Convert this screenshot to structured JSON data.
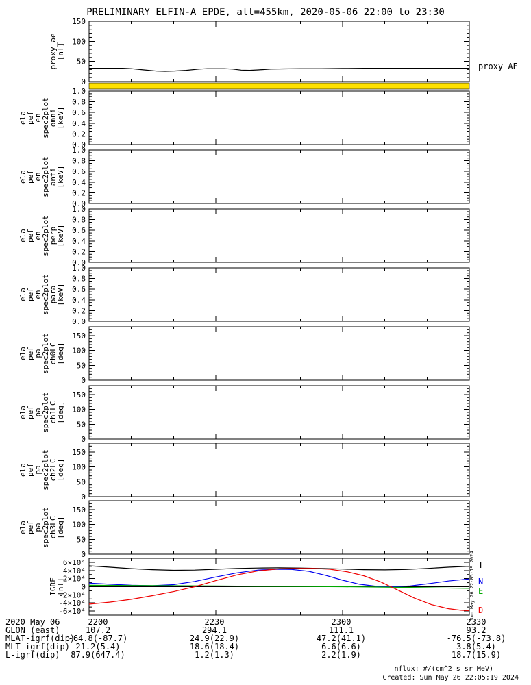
{
  "title": "PRELIMINARY ELFIN-A EPDE, alt=455km, 2020-05-06 22:00 to 23:30",
  "colors": {
    "axis": "#000000",
    "stripe_yellow": "#ffe100",
    "trace_T": "#000000",
    "trace_N": "#0000ee",
    "trace_E": "#00aa00",
    "trace_D": "#ee0000"
  },
  "right_labels": {
    "proxy": "proxy_AE",
    "T": "T",
    "N": "N",
    "E": "E",
    "D": "D"
  },
  "side_note_vertical": "Sun May 26 22:05:19 2024",
  "footer": {
    "date_label": "2020 May 06",
    "tick_labels": [
      "2200",
      "2230",
      "2300",
      "2330"
    ],
    "rows": [
      {
        "label": "GLON (east)",
        "values": [
          "107.2",
          "294.1",
          "111.1",
          "93.2"
        ]
      },
      {
        "label": "MLAT-igrf(dip)",
        "values": [
          "-64.8(-87.7)",
          "24.9(22.9)",
          "47.2(41.1)",
          "-76.5(-73.8)"
        ]
      },
      {
        "label": "MLT-igrf(dip)",
        "values": [
          "21.2(5.4)",
          "18.6(18.4)",
          "6.6(6.6)",
          "3.8(5.4)"
        ]
      },
      {
        "label": "L-igrf(dip)",
        "values": [
          "87.9(647.4)",
          "1.2(1.3)",
          "2.2(1.9)",
          "18.7(15.9)"
        ]
      }
    ]
  },
  "notes": {
    "nflux": "nflux: #/(cm^2 s sr MeV)",
    "created": "Created: Sun May 26 22:05:19 2024"
  },
  "chart_data": {
    "type": "line",
    "subtype": "multi-panel-time-series",
    "title": "PRELIMINARY ELFIN-A EPDE, alt=455km, 2020-05-06 22:00 to 23:30",
    "x_axis": {
      "start": "2020-05-06 22:00",
      "end": "2020-05-06 23:30",
      "major_tick_labels": [
        "2200",
        "2230",
        "2300",
        "2330"
      ]
    },
    "x_range_min": [
      0,
      90
    ],
    "x_major_ticks_min": [
      0,
      30,
      60,
      90
    ],
    "x_minor_step_min": 10,
    "panels": [
      {
        "id": "proxy_ae",
        "ylabel_lines": [
          "proxy_ae",
          "[nT]"
        ],
        "ylim": [
          0,
          150
        ],
        "yticks": [
          0,
          50,
          100,
          150
        ],
        "ytick_labels": [
          "0",
          "50",
          "100",
          "150"
        ],
        "y_minor_step": 10,
        "series": [
          {
            "name": "proxy_AE",
            "color_key": "trace_T",
            "x": [
              0,
              5,
              8,
              10,
              13,
              16,
              18,
              20,
              23,
              26,
              28,
              30,
              32,
              34,
              36,
              38,
              40,
              43,
              46,
              50,
              55,
              60,
              65,
              70,
              75,
              80,
              85,
              90
            ],
            "y": [
              33,
              33,
              33,
              32,
              29,
              26,
              25.5,
              26,
              28,
              31,
              32,
              32,
              32,
              31,
              28.5,
              28,
              29,
              31,
              31.5,
              32,
              32,
              32.5,
              33,
              33,
              33,
              33,
              33,
              33
            ]
          }
        ]
      },
      {
        "id": "spectrogram_stripe",
        "type": "stripe",
        "note": "saturated yellow spectrogram band"
      },
      {
        "id": "ela_pef_en_spec2plot_omni",
        "ylabel_lines": [
          "ela",
          "pef",
          "en",
          "spec2plot",
          "omni",
          "[keV]"
        ],
        "ylim": [
          0,
          1
        ],
        "yticks": [
          0,
          0.2,
          0.4,
          0.6,
          0.8,
          1
        ],
        "ytick_labels": [
          "0.0",
          "0.2",
          "0.4",
          "0.6",
          "0.8",
          "1.0"
        ],
        "y_minor_step": 0.05,
        "series": []
      },
      {
        "id": "ela_pef_en_spec2plot_anti",
        "ylabel_lines": [
          "ela",
          "pef",
          "en",
          "spec2plot",
          "anti",
          "[keV]"
        ],
        "ylim": [
          0,
          1
        ],
        "yticks": [
          0,
          0.2,
          0.4,
          0.6,
          0.8,
          1
        ],
        "ytick_labels": [
          "0.0",
          "0.2",
          "0.4",
          "0.6",
          "0.8",
          "1.0"
        ],
        "y_minor_step": 0.05,
        "series": []
      },
      {
        "id": "ela_pef_en_spec2plot_perp",
        "ylabel_lines": [
          "ela",
          "pef",
          "en",
          "spec2plot",
          "perp",
          "[keV]"
        ],
        "ylim": [
          0,
          1
        ],
        "yticks": [
          0,
          0.2,
          0.4,
          0.6,
          0.8,
          1
        ],
        "ytick_labels": [
          "0.0",
          "0.2",
          "0.4",
          "0.6",
          "0.8",
          "1.0"
        ],
        "y_minor_step": 0.05,
        "series": []
      },
      {
        "id": "ela_pef_en_spec2plot_para",
        "ylabel_lines": [
          "ela",
          "pef",
          "en",
          "spec2plot",
          "para",
          "[keV]"
        ],
        "ylim": [
          0,
          1
        ],
        "yticks": [
          0,
          0.2,
          0.4,
          0.6,
          0.8,
          1
        ],
        "ytick_labels": [
          "0.0",
          "0.2",
          "0.4",
          "0.6",
          "0.8",
          "1.0"
        ],
        "y_minor_step": 0.05,
        "series": []
      },
      {
        "id": "ela_pef_pa_spec2plot_ch0LC",
        "ylabel_lines": [
          "ela",
          "pef",
          "pa",
          "spec2plot",
          "ch0LC",
          "[deg]"
        ],
        "ylim": [
          0,
          180
        ],
        "yticks": [
          0,
          50,
          100,
          150
        ],
        "ytick_labels": [
          "0",
          "50",
          "100",
          "150"
        ],
        "y_minor_step": 10,
        "series": []
      },
      {
        "id": "ela_pef_pa_spec2plot_ch1LC",
        "ylabel_lines": [
          "ela",
          "pef",
          "pa",
          "spec2plot",
          "ch1LC",
          "[deg]"
        ],
        "ylim": [
          0,
          180
        ],
        "yticks": [
          0,
          50,
          100,
          150
        ],
        "ytick_labels": [
          "0",
          "50",
          "100",
          "150"
        ],
        "y_minor_step": 10,
        "series": []
      },
      {
        "id": "ela_pef_pa_spec2plot_ch2LC",
        "ylabel_lines": [
          "ela",
          "pef",
          "pa",
          "spec2plot",
          "ch2LC",
          "[deg]"
        ],
        "ylim": [
          0,
          180
        ],
        "yticks": [
          0,
          50,
          100,
          150
        ],
        "ytick_labels": [
          "0",
          "50",
          "100",
          "150"
        ],
        "y_minor_step": 10,
        "series": []
      },
      {
        "id": "ela_pef_pa_spec2plot_ch3LC",
        "ylabel_lines": [
          "ela",
          "pef",
          "pa",
          "spec2plot",
          "ch3LC",
          "[deg]"
        ],
        "ylim": [
          0,
          180
        ],
        "yticks": [
          0,
          50,
          100,
          150
        ],
        "ytick_labels": [
          "0",
          "50",
          "100",
          "150"
        ],
        "y_minor_step": 10,
        "series": []
      },
      {
        "id": "igrf",
        "ylabel_lines": [
          "IGRF",
          "[nT]"
        ],
        "ylim": [
          -70000,
          70000
        ],
        "yticks": [
          -60000,
          -40000,
          -20000,
          0,
          20000,
          40000,
          60000
        ],
        "ytick_labels": [
          "-6×10⁴",
          "-4×10⁴",
          "-2×10⁴",
          "0",
          "2×10⁴",
          "4×10⁴",
          "6×10⁴"
        ],
        "y_minor_step": 10000,
        "zero_line": true,
        "series": [
          {
            "name": "T",
            "color_key": "trace_T",
            "x": [
              0,
              5,
              10,
              15,
              20,
              25,
              30,
              35,
              40,
              45,
              50,
              55,
              60,
              65,
              70,
              75,
              80,
              85,
              90
            ],
            "y": [
              51500,
              48000,
              44500,
              42000,
              40500,
              41000,
              43000,
              45000,
              46000,
              46500,
              46000,
              45000,
              43500,
              42000,
              41500,
              42500,
              45000,
              48000,
              50500
            ]
          },
          {
            "name": "N",
            "color_key": "trace_N",
            "x": [
              0,
              5,
              10,
              15,
              20,
              25,
              30,
              35,
              40,
              45,
              48,
              52,
              56,
              60,
              64,
              68,
              72,
              76,
              80,
              85,
              90
            ],
            "y": [
              9000,
              6000,
              3500,
              2500,
              5000,
              13000,
              24000,
              34000,
              41000,
              43000,
              42500,
              38000,
              28000,
              16000,
              6000,
              1000,
              0,
              2000,
              7000,
              14000,
              19000
            ]
          },
          {
            "name": "E",
            "color_key": "trace_E",
            "x": [
              0,
              10,
              20,
              30,
              40,
              50,
              60,
              70,
              80,
              90
            ],
            "y": [
              3500,
              3000,
              2500,
              2000,
              1000,
              500,
              0,
              -1000,
              -2500,
              -4000
            ]
          },
          {
            "name": "D",
            "color_key": "trace_D",
            "x": [
              0,
              5,
              10,
              15,
              20,
              25,
              30,
              35,
              40,
              45,
              50,
              53,
              57,
              61,
              65,
              69,
              73,
              77,
              81,
              85,
              88,
              90
            ],
            "y": [
              -43000,
              -38000,
              -31000,
              -22000,
              -12000,
              0,
              15000,
              29000,
              39000,
              44000,
              45000,
              45000,
              43000,
              37000,
              27000,
              12000,
              -8000,
              -28000,
              -44000,
              -54000,
              -58000,
              -59000
            ]
          }
        ]
      }
    ]
  }
}
